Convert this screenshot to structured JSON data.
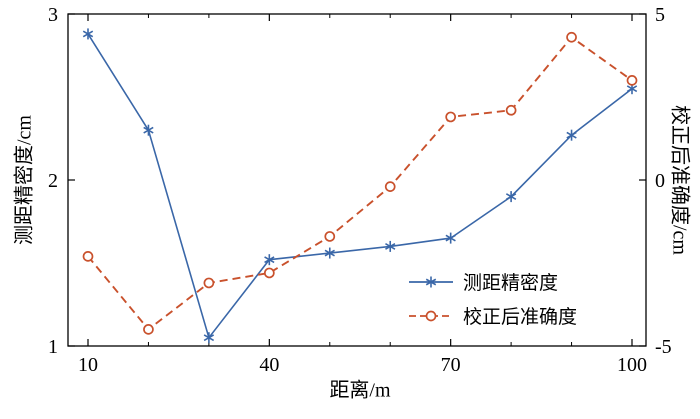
{
  "chart_data": {
    "type": "line",
    "x": [
      10,
      20,
      30,
      40,
      50,
      60,
      70,
      80,
      90,
      100
    ],
    "series": [
      {
        "name": "测距精密度",
        "axis": "left",
        "color": "#3a67a8",
        "style": "solid",
        "marker": "asterisk",
        "values": [
          2.88,
          2.3,
          1.05,
          1.52,
          1.56,
          1.6,
          1.65,
          1.9,
          2.27,
          2.55
        ]
      },
      {
        "name": "校正后准确度",
        "axis": "right",
        "color": "#c9512c",
        "style": "dashed",
        "marker": "circle",
        "values": [
          -2.3,
          -4.5,
          -3.1,
          -2.8,
          -1.7,
          -0.2,
          1.9,
          2.1,
          4.3,
          3.0
        ]
      }
    ],
    "xlabel": "距离/m",
    "ylabel_left": "测距精密度/cm",
    "ylabel_right": "校正后准确度/cm",
    "xlim": [
      10,
      100
    ],
    "ylim_left": [
      1,
      3
    ],
    "ylim_right": [
      -5,
      5
    ],
    "xticks": [
      10,
      40,
      70,
      100
    ],
    "xticks_minor": [
      20,
      30,
      50,
      60,
      80,
      90
    ],
    "yticks_left": [
      1,
      2,
      3
    ],
    "yticks_right": [
      -5,
      0,
      5
    ],
    "grid": false,
    "legend_position": "inside-lower-right"
  }
}
